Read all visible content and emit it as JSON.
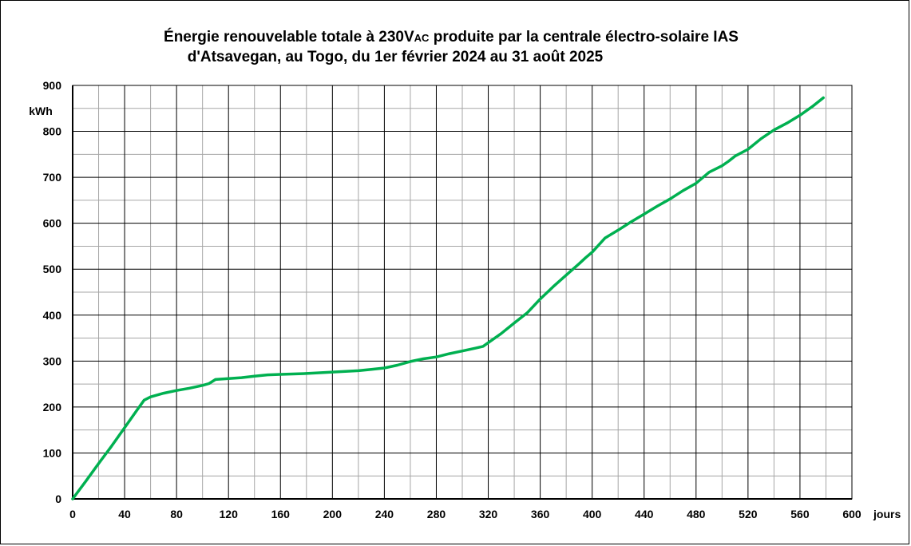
{
  "chart_data": {
    "type": "line",
    "title_part1": "Énergie renouvelable totale à 230V",
    "title_subscript": "AC",
    "title_part2": " produite par la centrale  électro-solaire IAS",
    "title_line2": "d'Atsavegan,  au Togo, du 1er février 2024 au 31 août 2025",
    "ylabel": "kWh",
    "xlabel": "jours",
    "xlim": [
      0,
      600
    ],
    "ylim": [
      0,
      900
    ],
    "xticks": [
      0,
      40,
      80,
      120,
      160,
      200,
      240,
      280,
      320,
      360,
      400,
      440,
      480,
      520,
      560,
      600
    ],
    "yticks": [
      0,
      100,
      200,
      300,
      400,
      500,
      600,
      700,
      800,
      900
    ],
    "grid": true,
    "colors": {
      "line": "#00b050",
      "major_grid": "#000000",
      "minor_grid": "#a6a6a6"
    },
    "series": [
      {
        "x": [
          0,
          10,
          20,
          30,
          40,
          45,
          50,
          55,
          60,
          70,
          80,
          90,
          100,
          105,
          110,
          120,
          130,
          140,
          150,
          160,
          180,
          200,
          220,
          230,
          240,
          250,
          260,
          270,
          280,
          290,
          300,
          310,
          316,
          320,
          330,
          340,
          350,
          360,
          370,
          380,
          390,
          395,
          400,
          410,
          420,
          430,
          440,
          450,
          460,
          470,
          480,
          490,
          500,
          505,
          510,
          520,
          530,
          540,
          550,
          560,
          570,
          578
        ],
        "y": [
          0,
          38,
          77,
          115,
          155,
          175,
          195,
          215,
          222,
          230,
          236,
          241,
          247,
          251,
          260,
          262,
          264,
          267,
          270,
          271,
          273,
          276,
          279,
          282,
          285,
          291,
          299,
          305,
          309,
          316,
          322,
          328,
          332,
          340,
          360,
          383,
          405,
          435,
          462,
          487,
          512,
          525,
          537,
          568,
          585,
          603,
          620,
          637,
          653,
          671,
          687,
          711,
          725,
          735,
          746,
          761,
          784,
          803,
          818,
          835,
          855,
          873
        ]
      }
    ]
  }
}
